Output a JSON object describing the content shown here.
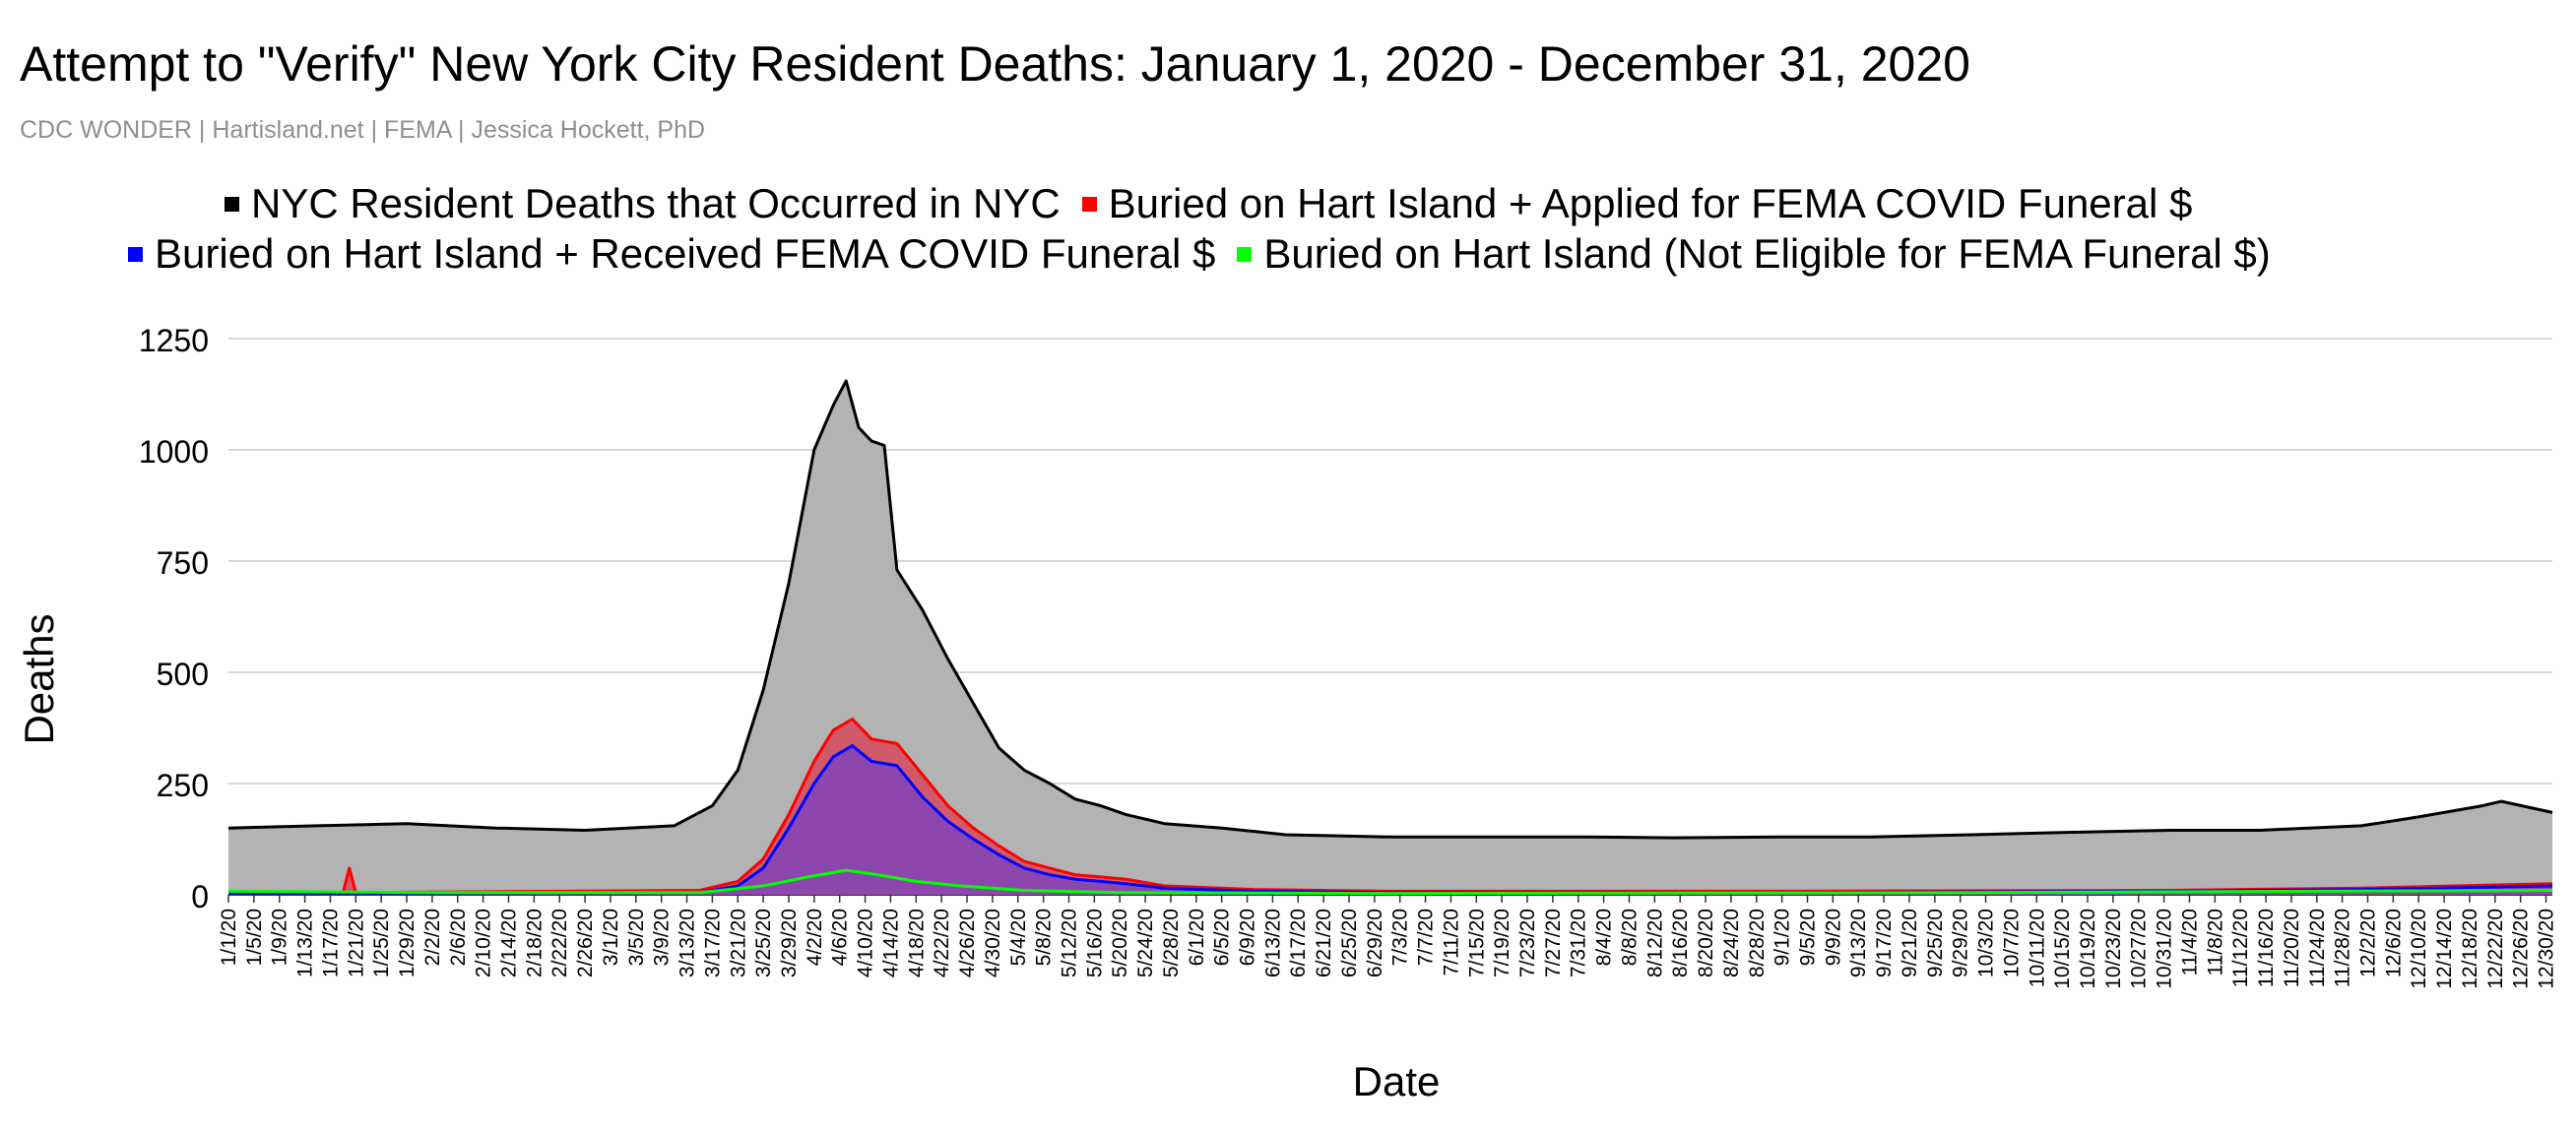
{
  "colors": {
    "nyc": "#000000",
    "applied": "#ff0000",
    "received": "#0000ff",
    "not_eligible": "#00ff00"
  },
  "chart_data": {
    "type": "area",
    "title": "Attempt to \"Verify\" New York City Resident Deaths: January 1, 2020 - December 31, 2020",
    "subtitle": "CDC WONDER | Hartisland.net | FEMA | Jessica Hockett, PhD",
    "xlabel": "Date",
    "ylabel": "Deaths",
    "ylim": [
      0,
      1250
    ],
    "yticks": [
      0,
      250,
      500,
      750,
      1000,
      1250
    ],
    "xrange": [
      "1/1/20",
      "12/31/20"
    ],
    "grid": true,
    "legend_position": "top",
    "tick_labels": [
      "1/1/20",
      "1/5/20",
      "1/9/20",
      "1/13/20",
      "1/17/20",
      "1/21/20",
      "1/25/20",
      "1/29/20",
      "2/2/20",
      "2/6/20",
      "2/10/20",
      "2/14/20",
      "2/18/20",
      "2/22/20",
      "2/26/20",
      "3/1/20",
      "3/5/20",
      "3/9/20",
      "3/13/20",
      "3/17/20",
      "3/21/20",
      "3/25/20",
      "3/29/20",
      "4/2/20",
      "4/6/20",
      "4/10/20",
      "4/14/20",
      "4/18/20",
      "4/22/20",
      "4/26/20",
      "4/30/20",
      "5/4/20",
      "5/8/20",
      "5/12/20",
      "5/16/20",
      "5/20/20",
      "5/24/20",
      "5/28/20",
      "6/1/20",
      "6/5/20",
      "6/9/20",
      "6/13/20",
      "6/17/20",
      "6/21/20",
      "6/25/20",
      "6/29/20",
      "7/3/20",
      "7/7/20",
      "7/11/20",
      "7/15/20",
      "7/19/20",
      "7/23/20",
      "7/27/20",
      "7/31/20",
      "8/4/20",
      "8/8/20",
      "8/12/20",
      "8/16/20",
      "8/20/20",
      "8/24/20",
      "8/28/20",
      "9/1/20",
      "9/5/20",
      "9/9/20",
      "9/13/20",
      "9/17/20",
      "9/21/20",
      "9/25/20",
      "9/29/20",
      "10/3/20",
      "10/7/20",
      "10/11/20",
      "10/15/20",
      "10/19/20",
      "10/23/20",
      "10/27/20",
      "10/31/20",
      "11/4/20",
      "11/8/20",
      "11/12/20",
      "11/16/20",
      "11/20/20",
      "11/24/20",
      "11/28/20",
      "12/2/20",
      "12/6/20",
      "12/10/20",
      "12/14/20",
      "12/18/20",
      "12/22/20",
      "12/26/20",
      "12/30/20"
    ],
    "series": [
      {
        "name": "NYC Resident Deaths that Occurred in NYC",
        "key": "nyc",
        "fill": "#b3b3b3",
        "stroke": "#000000",
        "points": [
          [
            "1/1/20",
            150
          ],
          [
            "1/15/20",
            155
          ],
          [
            "1/29/20",
            160
          ],
          [
            "2/12/20",
            150
          ],
          [
            "2/26/20",
            145
          ],
          [
            "3/11/20",
            155
          ],
          [
            "3/17/20",
            200
          ],
          [
            "3/21/20",
            280
          ],
          [
            "3/25/20",
            460
          ],
          [
            "3/29/20",
            700
          ],
          [
            "4/2/20",
            1000
          ],
          [
            "4/5/20",
            1100
          ],
          [
            "4/7/20",
            1155
          ],
          [
            "4/9/20",
            1050
          ],
          [
            "4/11/20",
            1020
          ],
          [
            "4/13/20",
            1010
          ],
          [
            "4/15/20",
            730
          ],
          [
            "4/19/20",
            640
          ],
          [
            "4/23/20",
            530
          ],
          [
            "4/27/20",
            430
          ],
          [
            "5/1/20",
            330
          ],
          [
            "5/5/20",
            280
          ],
          [
            "5/9/20",
            250
          ],
          [
            "5/13/20",
            215
          ],
          [
            "5/17/20",
            200
          ],
          [
            "5/21/20",
            180
          ],
          [
            "5/27/20",
            160
          ],
          [
            "6/5/20",
            150
          ],
          [
            "6/15/20",
            135
          ],
          [
            "7/1/20",
            130
          ],
          [
            "7/15/20",
            130
          ],
          [
            "8/1/20",
            130
          ],
          [
            "8/15/20",
            128
          ],
          [
            "9/1/20",
            130
          ],
          [
            "9/15/20",
            130
          ],
          [
            "10/1/20",
            135
          ],
          [
            "10/15/20",
            140
          ],
          [
            "11/1/20",
            145
          ],
          [
            "11/15/20",
            145
          ],
          [
            "12/1/20",
            155
          ],
          [
            "12/10/20",
            175
          ],
          [
            "12/20/20",
            200
          ],
          [
            "12/23/20",
            210
          ],
          [
            "12/31/20",
            185
          ]
        ]
      },
      {
        "name": "Buried on Hart Island + Applied for FEMA COVID Funeral $",
        "key": "applied",
        "fill": "#d05a6a",
        "stroke": "#ff0000",
        "points": [
          [
            "1/1/20",
            5
          ],
          [
            "1/19/20",
            5
          ],
          [
            "1/20/20",
            60
          ],
          [
            "1/21/20",
            5
          ],
          [
            "3/15/20",
            10
          ],
          [
            "3/21/20",
            30
          ],
          [
            "3/25/20",
            80
          ],
          [
            "3/29/20",
            180
          ],
          [
            "4/2/20",
            300
          ],
          [
            "4/5/20",
            370
          ],
          [
            "4/8/20",
            395
          ],
          [
            "4/11/20",
            350
          ],
          [
            "4/15/20",
            340
          ],
          [
            "4/19/20",
            270
          ],
          [
            "4/23/20",
            200
          ],
          [
            "4/27/20",
            150
          ],
          [
            "5/1/20",
            110
          ],
          [
            "5/5/20",
            75
          ],
          [
            "5/9/20",
            60
          ],
          [
            "5/13/20",
            45
          ],
          [
            "5/17/20",
            40
          ],
          [
            "5/21/20",
            35
          ],
          [
            "5/27/20",
            20
          ],
          [
            "6/10/20",
            12
          ],
          [
            "7/1/20",
            8
          ],
          [
            "9/1/20",
            8
          ],
          [
            "11/1/20",
            10
          ],
          [
            "12/1/20",
            15
          ],
          [
            "12/31/20",
            25
          ]
        ]
      },
      {
        "name": "Buried on Hart Island + Received FEMA COVID Funeral $",
        "key": "received",
        "fill": "#8d46ad",
        "stroke": "#0000ff",
        "points": [
          [
            "1/1/20",
            3
          ],
          [
            "3/15/20",
            5
          ],
          [
            "3/21/20",
            20
          ],
          [
            "3/25/20",
            60
          ],
          [
            "3/29/20",
            150
          ],
          [
            "4/2/20",
            250
          ],
          [
            "4/5/20",
            310
          ],
          [
            "4/8/20",
            335
          ],
          [
            "4/11/20",
            300
          ],
          [
            "4/15/20",
            290
          ],
          [
            "4/19/20",
            220
          ],
          [
            "4/23/20",
            165
          ],
          [
            "4/27/20",
            125
          ],
          [
            "5/1/20",
            90
          ],
          [
            "5/5/20",
            60
          ],
          [
            "5/9/20",
            45
          ],
          [
            "5/13/20",
            35
          ],
          [
            "5/17/20",
            30
          ],
          [
            "5/21/20",
            25
          ],
          [
            "5/27/20",
            15
          ],
          [
            "6/10/20",
            8
          ],
          [
            "7/1/20",
            5
          ],
          [
            "9/1/20",
            5
          ],
          [
            "11/1/20",
            8
          ],
          [
            "12/1/20",
            12
          ],
          [
            "12/31/20",
            20
          ]
        ]
      },
      {
        "name": "Buried on Hart Island (Not Eligible for FEMA Funeral $)",
        "key": "not_eligible",
        "fill": "none",
        "stroke": "#00ff00",
        "points": [
          [
            "1/1/20",
            8
          ],
          [
            "2/1/20",
            5
          ],
          [
            "3/15/20",
            5
          ],
          [
            "3/25/20",
            20
          ],
          [
            "4/1/20",
            40
          ],
          [
            "4/7/20",
            55
          ],
          [
            "4/12/20",
            45
          ],
          [
            "4/18/20",
            30
          ],
          [
            "4/25/20",
            20
          ],
          [
            "5/5/20",
            10
          ],
          [
            "5/20/20",
            5
          ],
          [
            "7/1/20",
            3
          ],
          [
            "10/1/20",
            5
          ],
          [
            "12/31/20",
            10
          ]
        ]
      }
    ]
  }
}
